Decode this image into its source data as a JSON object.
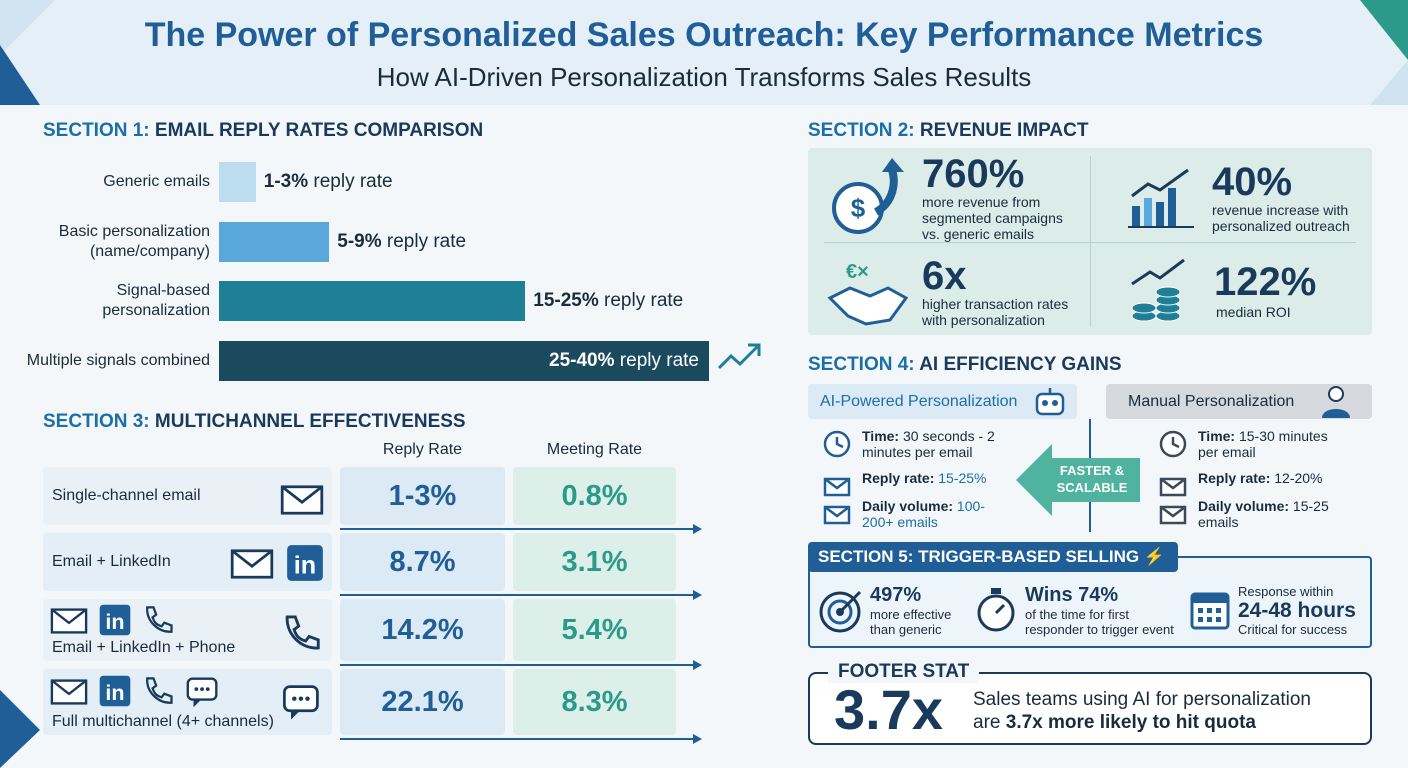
{
  "header": {
    "title": "The Power of Personalized Sales Outreach: Key Performance Metrics",
    "subtitle": "How AI-Driven Personalization Transforms Sales Results"
  },
  "section1": {
    "prefix": "SECTION 1:",
    "heading": "EMAIL REPLY RATES COMPARISON",
    "type": "bar",
    "categories": [
      "Generic emails",
      "Basic personalization (name/company)",
      "Signal-based personalization",
      "Multiple signals combined"
    ],
    "values": [
      3,
      9,
      25,
      40
    ],
    "value_labels": [
      "1-3%",
      "5-9%",
      "15-25%",
      "25-40%"
    ],
    "label_suffix": "reply rate",
    "colors": [
      "#bcdcf0",
      "#5aa7dc",
      "#1f7f96",
      "#1b4a5e"
    ],
    "xlim": [
      0,
      40
    ]
  },
  "section2": {
    "prefix": "SECTION 2:",
    "heading": "REVENUE IMPACT",
    "items": [
      {
        "value": "760%",
        "text": "more revenue from segmented campaigns vs. generic emails"
      },
      {
        "value": "40%",
        "text": "revenue increase with personalized outreach"
      },
      {
        "value": "6x",
        "text": "higher transaction rates with personalization"
      },
      {
        "value": "122%",
        "text": "median ROI"
      }
    ]
  },
  "section3": {
    "prefix": "SECTION 3:",
    "heading": "MULTICHANNEL EFFECTIVENESS",
    "columns": [
      "Reply Rate",
      "Meeting Rate"
    ],
    "rows": [
      {
        "label": "Single-channel email",
        "reply": "1-3%",
        "meeting": "0.8%"
      },
      {
        "label": "Email + LinkedIn",
        "reply": "8.7%",
        "meeting": "3.1%"
      },
      {
        "label": "Email + LinkedIn + Phone",
        "reply": "14.2%",
        "meeting": "5.4%"
      },
      {
        "label": "Full multichannel (4+ channels)",
        "reply": "22.1%",
        "meeting": "8.3%"
      }
    ]
  },
  "section4": {
    "prefix": "SECTION 4:",
    "heading": "AI EFFICIENCY GAINS",
    "arrow": "FASTER & SCALABLE",
    "ai": {
      "title": "AI-Powered Personalization",
      "items": [
        {
          "label": "Time:",
          "text": "30 seconds - 2 minutes per email"
        },
        {
          "label": "Reply rate:",
          "text": "15-25%"
        },
        {
          "label": "Daily volume:",
          "text": "100-200+ emails"
        }
      ]
    },
    "manual": {
      "title": "Manual Personalization",
      "items": [
        {
          "label": "Time:",
          "text": "15-30 minutes per email"
        },
        {
          "label": "Reply rate:",
          "text": "12-20%"
        },
        {
          "label": "Daily volume:",
          "text": "15-25 emails"
        }
      ]
    }
  },
  "section5": {
    "heading": "SECTION 5: TRIGGER-BASED SELLING",
    "items": [
      {
        "big": "497%",
        "text": "more effective than generic"
      },
      {
        "big": "Wins 74%",
        "text": "of the time for first responder to trigger event"
      },
      {
        "pre": "Response within",
        "big": "24-48 hours",
        "text": "Critical for success"
      }
    ]
  },
  "footer": {
    "heading": "FOOTER STAT",
    "big": "3.7x",
    "line1": "Sales teams using AI for personalization",
    "line2a": "are",
    "line2b": "3.7x more likely to hit quota"
  }
}
